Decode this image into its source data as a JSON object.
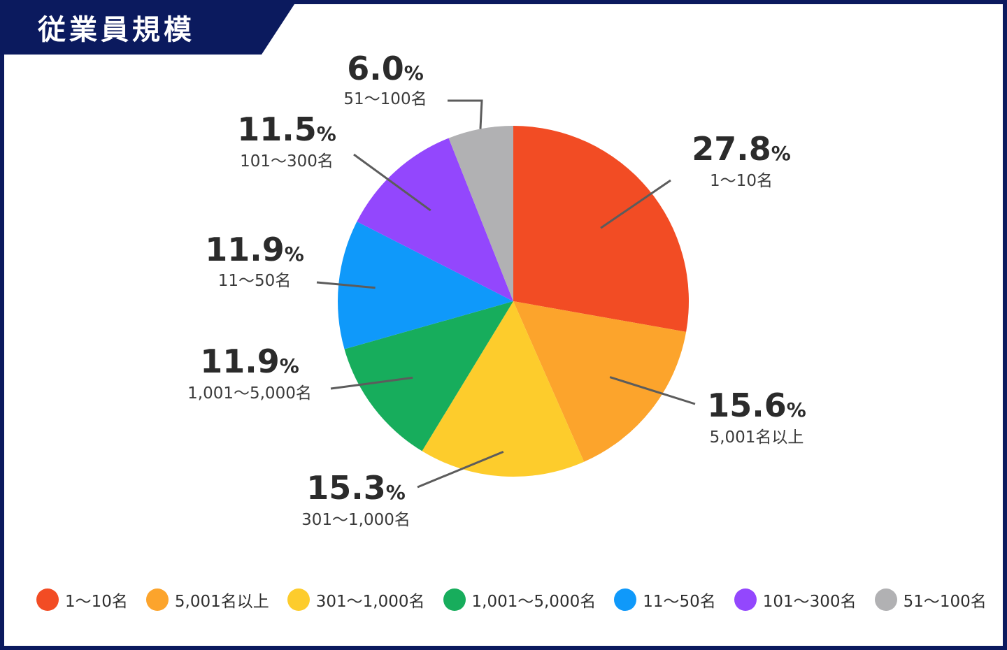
{
  "header": {
    "title": "従業員規模"
  },
  "chart_data": {
    "type": "pie",
    "title": "従業員規模",
    "unit": "%",
    "slices": [
      {
        "label": "1〜10名",
        "value": 27.8,
        "value_text": "27.8",
        "color": "#f24c24"
      },
      {
        "label": "5,001名以上",
        "value": 15.6,
        "value_text": "15.6",
        "color": "#fca42c"
      },
      {
        "label": "301〜1,000名",
        "value": 15.3,
        "value_text": "15.3",
        "color": "#fdcc2c"
      },
      {
        "label": "1,001〜5,000名",
        "value": 11.9,
        "value_text": "11.9",
        "color": "#17ad5c"
      },
      {
        "label": "11〜50名",
        "value": 11.9,
        "value_text": "11.9",
        "color": "#0f99fa"
      },
      {
        "label": "101〜300名",
        "value": 11.5,
        "value_text": "11.5",
        "color": "#9347fd"
      },
      {
        "label": "51〜100名",
        "value": 6.0,
        "value_text": "6.0",
        "color": "#b1b1b3"
      }
    ],
    "legend_position": "bottom"
  }
}
